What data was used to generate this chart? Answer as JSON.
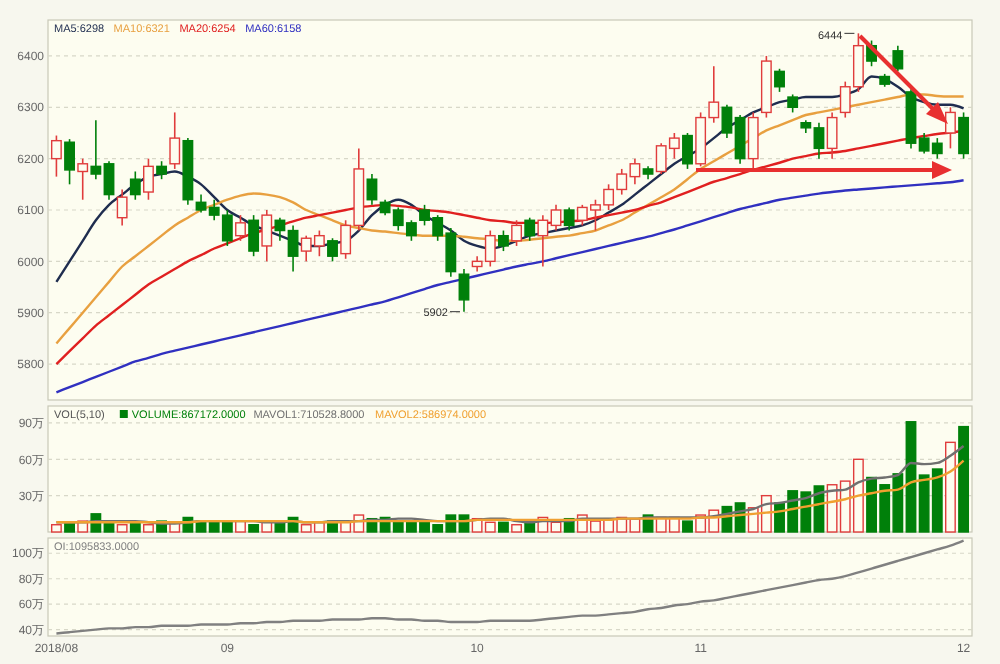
{
  "chart_data": [
    {
      "type": "candlestick",
      "legend": "top left",
      "grid": "y",
      "tick_labels": "y",
      "ylim": [
        5730,
        6470
      ],
      "yticks": [
        5800,
        5900,
        6000,
        6100,
        6200,
        6300,
        6400
      ],
      "categories": [
        null,
        null,
        null,
        null,
        null,
        null,
        null,
        null,
        null,
        null,
        null,
        null,
        null,
        null,
        null,
        null,
        null,
        null,
        null,
        null,
        null,
        null,
        null,
        null,
        null,
        null,
        null,
        null,
        null,
        null,
        null,
        null,
        null,
        null,
        null,
        null,
        null,
        null,
        null,
        null,
        null,
        null,
        null,
        null,
        null,
        null,
        null,
        null,
        null,
        null,
        null,
        null,
        null,
        null,
        null,
        null,
        null,
        null,
        null,
        null,
        null,
        null,
        null,
        null,
        null,
        null,
        null,
        null,
        null,
        null
      ],
      "ohlc": [
        [
          6200,
          6245,
          6165,
          6235
        ],
        [
          6232,
          6238,
          6150,
          6178
        ],
        [
          6175,
          6200,
          6120,
          6190
        ],
        [
          6185,
          6275,
          6160,
          6170
        ],
        [
          6190,
          6195,
          6120,
          6130
        ],
        [
          6085,
          6140,
          6070,
          6125
        ],
        [
          6160,
          6175,
          6120,
          6130
        ],
        [
          6135,
          6200,
          6120,
          6185
        ],
        [
          6185,
          6195,
          6160,
          6170
        ],
        [
          6190,
          6290,
          6180,
          6240
        ],
        [
          6235,
          6240,
          6110,
          6120
        ],
        [
          6115,
          6130,
          6095,
          6100
        ],
        [
          6105,
          6120,
          6080,
          6090
        ],
        [
          6090,
          6100,
          6030,
          6040
        ],
        [
          6050,
          6090,
          6040,
          6075
        ],
        [
          6080,
          6090,
          6010,
          6020
        ],
        [
          6030,
          6100,
          6000,
          6090
        ],
        [
          6080,
          6085,
          6040,
          6060
        ],
        [
          6060,
          6070,
          5980,
          6010
        ],
        [
          6020,
          6050,
          6000,
          6045
        ],
        [
          6030,
          6060,
          6010,
          6050
        ],
        [
          6040,
          6045,
          6000,
          6010
        ],
        [
          6015,
          6080,
          6005,
          6070
        ],
        [
          6070,
          6220,
          6060,
          6180
        ],
        [
          6160,
          6170,
          6110,
          6120
        ],
        [
          6115,
          6120,
          6090,
          6095
        ],
        [
          6100,
          6105,
          6060,
          6070
        ],
        [
          6075,
          6080,
          6040,
          6050
        ],
        [
          6100,
          6110,
          6070,
          6080
        ],
        [
          6085,
          6090,
          6040,
          6050
        ],
        [
          6055,
          6065,
          5970,
          5980
        ],
        [
          5975,
          5985,
          5902,
          5925
        ],
        [
          5990,
          6010,
          5980,
          6000
        ],
        [
          6000,
          6060,
          5990,
          6050
        ],
        [
          6050,
          6060,
          6020,
          6030
        ],
        [
          6040,
          6080,
          6030,
          6070
        ],
        [
          6080,
          6085,
          6040,
          6050
        ],
        [
          6050,
          6090,
          5990,
          6080
        ],
        [
          6070,
          6110,
          6060,
          6100
        ],
        [
          6100,
          6105,
          6060,
          6070
        ],
        [
          6080,
          6110,
          6070,
          6105
        ],
        [
          6100,
          6120,
          6060,
          6110
        ],
        [
          6110,
          6150,
          6100,
          6140
        ],
        [
          6140,
          6180,
          6130,
          6170
        ],
        [
          6165,
          6200,
          6150,
          6190
        ],
        [
          6180,
          6185,
          6160,
          6170
        ],
        [
          6175,
          6230,
          6170,
          6225
        ],
        [
          6220,
          6250,
          6200,
          6240
        ],
        [
          6245,
          6250,
          6180,
          6190
        ],
        [
          6190,
          6290,
          6185,
          6280
        ],
        [
          6280,
          6380,
          6270,
          6310
        ],
        [
          6300,
          6305,
          6240,
          6250
        ],
        [
          6280,
          6285,
          6190,
          6200
        ],
        [
          6200,
          6290,
          6180,
          6280
        ],
        [
          6290,
          6400,
          6280,
          6390
        ],
        [
          6370,
          6375,
          6330,
          6340
        ],
        [
          6320,
          6325,
          6290,
          6300
        ],
        [
          6270,
          6275,
          6250,
          6260
        ],
        [
          6260,
          6270,
          6200,
          6220
        ],
        [
          6220,
          6290,
          6200,
          6280
        ],
        [
          6290,
          6350,
          6280,
          6340
        ],
        [
          6340,
          6444,
          6330,
          6420
        ],
        [
          6420,
          6430,
          6380,
          6390
        ],
        [
          6360,
          6365,
          6340,
          6345
        ],
        [
          6410,
          6420,
          6370,
          6375
        ],
        [
          6330,
          6335,
          6220,
          6230
        ],
        [
          6240,
          6250,
          6210,
          6215
        ],
        [
          6230,
          6240,
          6200,
          6210
        ],
        [
          6250,
          6300,
          6220,
          6290
        ],
        [
          6280,
          6290,
          6200,
          6210
        ]
      ],
      "colors": [
        "#e03c3c",
        "#00800a",
        "#e03c3c",
        "#00800a",
        "#00800a",
        "#e03c3c",
        "#00800a",
        "#e03c3c",
        "#00800a",
        "#e03c3c",
        "#00800a",
        "#00800a",
        "#00800a",
        "#00800a",
        "#e03c3c",
        "#00800a",
        "#e03c3c",
        "#00800a",
        "#00800a",
        "#e03c3c",
        "#e03c3c",
        "#00800a",
        "#e03c3c",
        "#e03c3c",
        "#00800a",
        "#00800a",
        "#00800a",
        "#00800a",
        "#00800a",
        "#00800a",
        "#00800a",
        "#00800a",
        "#e03c3c",
        "#e03c3c",
        "#00800a",
        "#e03c3c",
        "#00800a",
        "#e03c3c",
        "#e03c3c",
        "#00800a",
        "#e03c3c",
        "#e03c3c",
        "#e03c3c",
        "#e03c3c",
        "#e03c3c",
        "#00800a",
        "#e03c3c",
        "#e03c3c",
        "#00800a",
        "#e03c3c",
        "#e03c3c",
        "#00800a",
        "#00800a",
        "#e03c3c",
        "#e03c3c",
        "#00800a",
        "#00800a",
        "#00800a",
        "#00800a",
        "#e03c3c",
        "#e03c3c",
        "#e03c3c",
        "#00800a",
        "#00800a",
        "#00800a",
        "#00800a",
        "#00800a",
        "#00800a",
        "#e03c3c",
        "#00800a"
      ],
      "series": [
        {
          "name": "MA5:6298",
          "type": "line",
          "color": "#1f2d4f",
          "values": [
            5960,
            6000,
            6040,
            6080,
            6110,
            6130,
            6150,
            6165,
            6170,
            6175,
            6165,
            6150,
            6125,
            6100,
            6085,
            6070,
            6060,
            6050,
            6040,
            6030,
            6030,
            6035,
            6040,
            6060,
            6090,
            6110,
            6120,
            6110,
            6090,
            6075,
            6060,
            6040,
            6030,
            6025,
            6030,
            6040,
            6050,
            6055,
            6060,
            6065,
            6070,
            6080,
            6095,
            6110,
            6130,
            6150,
            6170,
            6190,
            6205,
            6220,
            6240,
            6260,
            6275,
            6290,
            6300,
            6310,
            6315,
            6320,
            6320,
            6320,
            6325,
            6335,
            6360,
            6355,
            6340,
            6320,
            6310,
            6305,
            6305,
            6298
          ]
        },
        {
          "name": "MA10:6321",
          "type": "line",
          "color": "#e8a040",
          "values": [
            5840,
            5870,
            5900,
            5930,
            5960,
            5990,
            6010,
            6030,
            6050,
            6070,
            6085,
            6100,
            6110,
            6120,
            6128,
            6132,
            6130,
            6125,
            6115,
            6100,
            6090,
            6080,
            6070,
            6065,
            6060,
            6058,
            6055,
            6052,
            6050,
            6050,
            6050,
            6048,
            6045,
            6043,
            6040,
            6040,
            6042,
            6045,
            6048,
            6050,
            6055,
            6060,
            6070,
            6080,
            6095,
            6110,
            6125,
            6140,
            6160,
            6180,
            6195,
            6210,
            6225,
            6240,
            6255,
            6265,
            6275,
            6285,
            6290,
            6295,
            6300,
            6305,
            6310,
            6315,
            6320,
            6325,
            6325,
            6322,
            6321,
            6321
          ]
        },
        {
          "name": "MA20:6254",
          "type": "line",
          "color": "#e02020",
          "values": [
            5800,
            5825,
            5850,
            5875,
            5895,
            5915,
            5935,
            5955,
            5970,
            5985,
            6000,
            6012,
            6025,
            6035,
            6045,
            6055,
            6062,
            6070,
            6078,
            6085,
            6090,
            6095,
            6100,
            6105,
            6108,
            6110,
            6108,
            6105,
            6100,
            6098,
            6095,
            6090,
            6085,
            6080,
            6078,
            6075,
            6075,
            6075,
            6076,
            6078,
            6080,
            6085,
            6090,
            6095,
            6100,
            6108,
            6115,
            6125,
            6135,
            6145,
            6155,
            6162,
            6170,
            6178,
            6185,
            6192,
            6200,
            6205,
            6210,
            6212,
            6215,
            6220,
            6225,
            6230,
            6235,
            6240,
            6244,
            6248,
            6251,
            6254
          ]
        },
        {
          "name": "MA60:6158",
          "type": "line",
          "color": "#3030c0",
          "values": [
            5745,
            5755,
            5765,
            5775,
            5785,
            5795,
            5805,
            5812,
            5820,
            5826,
            5832,
            5838,
            5844,
            5850,
            5856,
            5862,
            5868,
            5874,
            5880,
            5886,
            5892,
            5898,
            5904,
            5910,
            5916,
            5922,
            5930,
            5938,
            5946,
            5954,
            5960,
            5966,
            5972,
            5978,
            5984,
            5990,
            5995,
            6000,
            6006,
            6012,
            6018,
            6024,
            6030,
            6036,
            6042,
            6048,
            6055,
            6062,
            6070,
            6078,
            6086,
            6094,
            6102,
            6108,
            6114,
            6120,
            6124,
            6128,
            6132,
            6135,
            6138,
            6140,
            6142,
            6144,
            6146,
            6148,
            6150,
            6152,
            6154,
            6158
          ]
        }
      ],
      "annotations": [
        "6444",
        "5902"
      ]
    },
    {
      "type": "bar",
      "legend": "top left",
      "legend_title": "VOL(5,10)",
      "grid": "y",
      "tick_labels": "y",
      "ylim": [
        0,
        104
      ],
      "yticks": [
        {
          "value": 30,
          "label": "30万"
        },
        {
          "value": 60,
          "label": "60万"
        },
        {
          "value": 90,
          "label": "90万"
        }
      ],
      "categories": [
        null,
        null,
        null,
        null,
        null,
        null,
        null,
        null,
        null,
        null,
        null,
        null,
        null,
        null,
        null,
        null,
        null,
        null,
        null,
        null,
        null,
        null,
        null,
        null,
        null,
        null,
        null,
        null,
        null,
        null,
        null,
        null,
        null,
        null,
        null,
        null,
        null,
        null,
        null,
        null,
        null,
        null,
        null,
        null,
        null,
        null,
        null,
        null,
        null,
        null,
        null,
        null,
        null,
        null,
        null,
        null,
        null,
        null,
        null,
        null,
        null,
        null,
        null,
        null,
        null,
        null,
        null,
        null,
        null,
        null
      ],
      "series": [
        {
          "name": "VOLUME:867172.0000",
          "type": "bar",
          "colors": [
            "#e03c3c",
            "#00800a",
            "#e03c3c",
            "#00800a",
            "#00800a",
            "#e03c3c",
            "#00800a",
            "#e03c3c",
            "#00800a",
            "#e03c3c",
            "#00800a",
            "#00800a",
            "#00800a",
            "#00800a",
            "#e03c3c",
            "#00800a",
            "#e03c3c",
            "#00800a",
            "#00800a",
            "#e03c3c",
            "#e03c3c",
            "#00800a",
            "#e03c3c",
            "#e03c3c",
            "#00800a",
            "#00800a",
            "#00800a",
            "#00800a",
            "#00800a",
            "#00800a",
            "#00800a",
            "#00800a",
            "#e03c3c",
            "#e03c3c",
            "#00800a",
            "#e03c3c",
            "#00800a",
            "#e03c3c",
            "#e03c3c",
            "#00800a",
            "#e03c3c",
            "#e03c3c",
            "#e03c3c",
            "#e03c3c",
            "#e03c3c",
            "#00800a",
            "#e03c3c",
            "#e03c3c",
            "#00800a",
            "#e03c3c",
            "#e03c3c",
            "#00800a",
            "#00800a",
            "#e03c3c",
            "#e03c3c",
            "#00800a",
            "#00800a",
            "#00800a",
            "#00800a",
            "#e03c3c",
            "#e03c3c",
            "#e03c3c",
            "#00800a",
            "#00800a",
            "#00800a",
            "#00800a",
            "#00800a",
            "#00800a",
            "#e03c3c",
            "#00800a"
          ],
          "values": [
            6,
            8,
            9,
            15,
            8,
            6,
            8,
            6,
            9,
            8,
            12,
            9,
            8,
            8,
            9,
            6,
            8,
            9,
            12,
            6,
            8,
            9,
            8,
            14,
            11,
            12,
            9,
            8,
            8,
            6,
            14,
            14,
            11,
            8,
            8,
            6,
            9,
            12,
            8,
            11,
            14,
            9,
            11,
            12,
            11,
            14,
            12,
            12,
            9,
            14,
            18,
            21,
            24,
            20,
            30,
            24,
            34,
            33,
            38,
            39,
            42,
            60,
            45,
            39,
            48,
            91,
            47,
            52,
            74,
            87
          ]
        },
        {
          "name": "MAVOL1:710528.8000",
          "type": "line",
          "color": "#707070",
          "values": [
            8,
            8,
            8,
            9,
            9,
            9,
            9,
            8,
            7,
            7,
            8,
            9,
            9,
            9,
            9,
            9,
            8,
            8,
            9,
            8,
            8,
            9,
            9,
            9,
            10,
            10,
            11,
            11,
            10,
            9,
            9,
            9,
            10,
            11,
            11,
            9,
            8,
            9,
            9,
            9,
            11,
            11,
            11,
            11,
            11,
            12,
            12,
            12,
            12,
            12,
            13,
            15,
            17,
            19,
            23,
            24,
            26,
            28,
            32,
            34,
            35,
            41,
            44,
            45,
            47,
            57,
            56,
            57,
            63,
            71
          ]
        },
        {
          "name": "MAVOL2:586974.0000",
          "type": "line",
          "color": "#f0a030",
          "values": [
            8,
            8,
            8,
            8,
            8,
            8,
            8,
            8,
            8,
            8,
            8,
            9,
            9,
            9,
            9,
            9,
            9,
            9,
            9,
            8,
            8,
            8,
            8,
            9,
            9,
            9,
            9,
            9,
            9,
            9,
            9,
            9,
            10,
            10,
            10,
            10,
            10,
            10,
            10,
            10,
            10,
            10,
            10,
            11,
            11,
            11,
            11,
            11,
            11,
            12,
            12,
            13,
            14,
            15,
            16,
            17,
            19,
            21,
            23,
            25,
            27,
            30,
            32,
            34,
            35,
            41,
            43,
            45,
            50,
            59
          ]
        }
      ]
    },
    {
      "type": "line",
      "legend": "top left",
      "grid": "y",
      "ylim": [
        35,
        112
      ],
      "yticks": [
        {
          "value": 40,
          "label": "40万"
        },
        {
          "value": 60,
          "label": "60万"
        },
        {
          "value": 80,
          "label": "80万"
        },
        {
          "value": 100,
          "label": "100万"
        }
      ],
      "categories": [
        "2018/08",
        null,
        null,
        null,
        null,
        null,
        null,
        null,
        null,
        null,
        null,
        null,
        null,
        "09",
        null,
        null,
        null,
        null,
        null,
        null,
        null,
        null,
        null,
        null,
        null,
        null,
        null,
        null,
        null,
        null,
        null,
        null,
        "10",
        null,
        null,
        null,
        null,
        null,
        null,
        null,
        null,
        null,
        null,
        null,
        null,
        null,
        null,
        null,
        null,
        "11",
        null,
        null,
        null,
        null,
        null,
        null,
        null,
        null,
        null,
        null,
        null,
        null,
        null,
        null,
        null,
        null,
        null,
        null,
        null,
        "12"
      ],
      "series": [
        {
          "name": "OI:1095833.0000",
          "color": "#808080",
          "values": [
            37,
            38,
            39,
            40,
            41,
            41,
            42,
            42,
            43,
            43,
            43,
            44,
            44,
            44,
            45,
            45,
            46,
            46,
            47,
            47,
            47,
            48,
            48,
            48,
            49,
            49,
            48,
            48,
            47,
            47,
            46,
            46,
            46,
            47,
            47,
            47,
            47,
            48,
            49,
            50,
            51,
            51,
            52,
            53,
            54,
            56,
            57,
            59,
            60,
            62,
            63,
            65,
            67,
            69,
            71,
            73,
            75,
            77,
            79,
            80,
            82,
            85,
            88,
            91,
            94,
            97,
            100,
            103,
            106,
            110
          ]
        }
      ]
    }
  ]
}
